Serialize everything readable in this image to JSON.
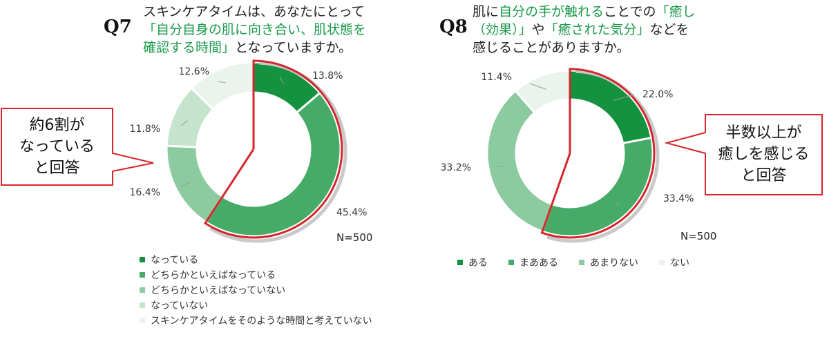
{
  "q7": {
    "qnum": "Q7",
    "line1": "スキンケアタイムは、あなたにとって",
    "line2": "「自分自身の肌に向き合い、肌状態を",
    "line3_green": "確認する時間」",
    "line3_rest": "となっていますか。",
    "callout": [
      "約6割が",
      "なっている",
      "と回答"
    ],
    "n_label": "N=500",
    "legend": [
      {
        "label": "なっている",
        "color": "#14923f"
      },
      {
        "label": "どちらかといえばなっている",
        "color": "#46ab68"
      },
      {
        "label": "どちらかといえばなっていない",
        "color": "#8ccaa0"
      },
      {
        "label": "なっていない",
        "color": "#c4e4cd"
      },
      {
        "label": "スキンケアタイムをそのような時間と考えていない",
        "color": "#eaf3ec"
      }
    ]
  },
  "q8": {
    "qnum": "Q8",
    "line1_a": "肌に",
    "line1_green": "自分の手が触れる",
    "line1_b": "ことでの",
    "line1_green2": "「癒し",
    "line2_green": "（効果）」",
    "line2_b": "や",
    "line2_green2": "「癒された気分」",
    "line2_c": "などを",
    "line3": "感じることがありますか。",
    "callout": [
      "半数以上が",
      "癒しを感じる",
      "と回答"
    ],
    "n_label": "N=500",
    "legend": [
      {
        "label": "ある",
        "color": "#14923f"
      },
      {
        "label": "まあある",
        "color": "#46ab68"
      },
      {
        "label": "あまりない",
        "color": "#8ccaa0"
      },
      {
        "label": "ない",
        "color": "#eaf3ec"
      }
    ]
  },
  "chart_data": [
    {
      "type": "pie",
      "title": "Q7",
      "categories": [
        "なっている",
        "どちらかといえばなっている",
        "どちらかといえばなっていない",
        "なっていない",
        "スキンケアタイムをそのような時間と考えていない"
      ],
      "values": [
        13.8,
        45.4,
        16.4,
        11.8,
        12.6
      ],
      "labels": [
        "13.8%",
        "45.4%",
        "16.4%",
        "11.8%",
        "12.6%"
      ],
      "colors": [
        "#14923f",
        "#46ab68",
        "#8ccaa0",
        "#c4e4cd",
        "#eaf3ec"
      ],
      "n": "N=500",
      "legend_position": "bottom"
    },
    {
      "type": "pie",
      "title": "Q8",
      "categories": [
        "ある",
        "まあある",
        "あまりない",
        "ない"
      ],
      "values": [
        22.0,
        33.4,
        33.2,
        11.4
      ],
      "labels": [
        "22.0%",
        "33.4%",
        "33.2%",
        "11.4%"
      ],
      "colors": [
        "#14923f",
        "#46ab68",
        "#8ccaa0",
        "#eaf3ec"
      ],
      "n": "N=500",
      "legend_position": "bottom"
    }
  ]
}
